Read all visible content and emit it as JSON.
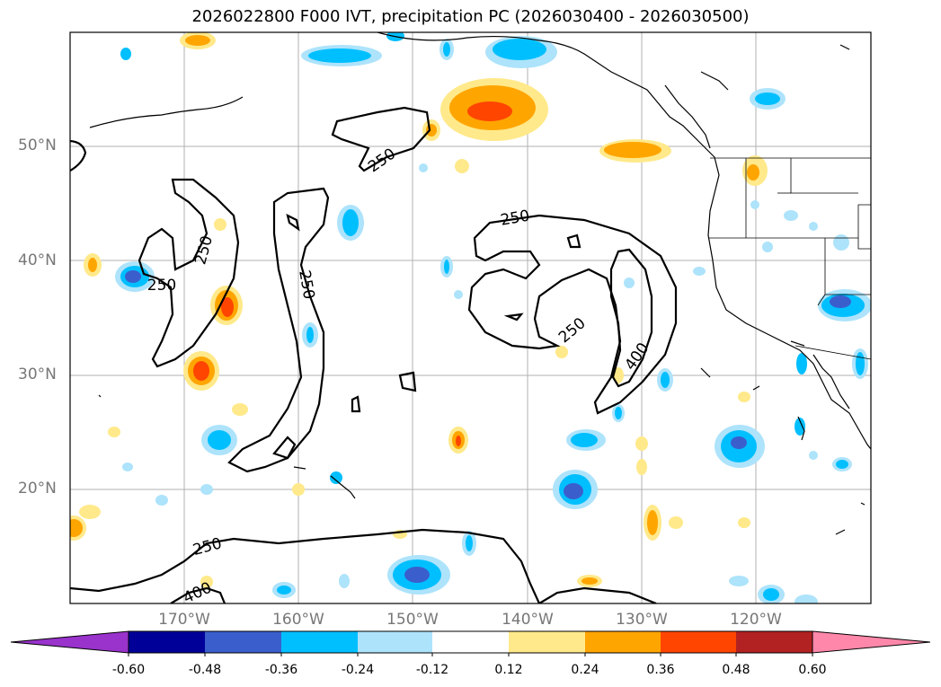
{
  "title": "2026022800 F000 IVT, precipitation PC (2026030400 - 2026030500)",
  "lat_labels": [
    "50°N",
    "40°N",
    "30°N",
    "20°N"
  ],
  "lon_labels": [
    "170°W",
    "160°W",
    "150°W",
    "140°W",
    "130°W",
    "120°W"
  ],
  "contour_labels": {
    "c1": "250",
    "c2": "250",
    "c3": "250",
    "c4": "250",
    "c5": "250",
    "c6": "250",
    "c7": "250",
    "c8": "400",
    "c9": "400"
  },
  "colorbar": {
    "ticks": [
      "-0.60",
      "-0.48",
      "-0.36",
      "-0.24",
      "-0.12",
      "0.12",
      "0.24",
      "0.36",
      "0.48",
      "0.60"
    ],
    "colors": {
      "neg_ext": "#9933cc",
      "neg_060": "#000099",
      "neg_048": "#3a5fcd",
      "neg_036": "#00bfff",
      "neg_024": "#ade3fb",
      "neutral": "#ffffff",
      "pos_012": "#ffe98a",
      "pos_024": "#ffa500",
      "pos_036": "#ff4500",
      "pos_048": "#b22222",
      "pos_ext": "#ff88aa"
    }
  }
}
